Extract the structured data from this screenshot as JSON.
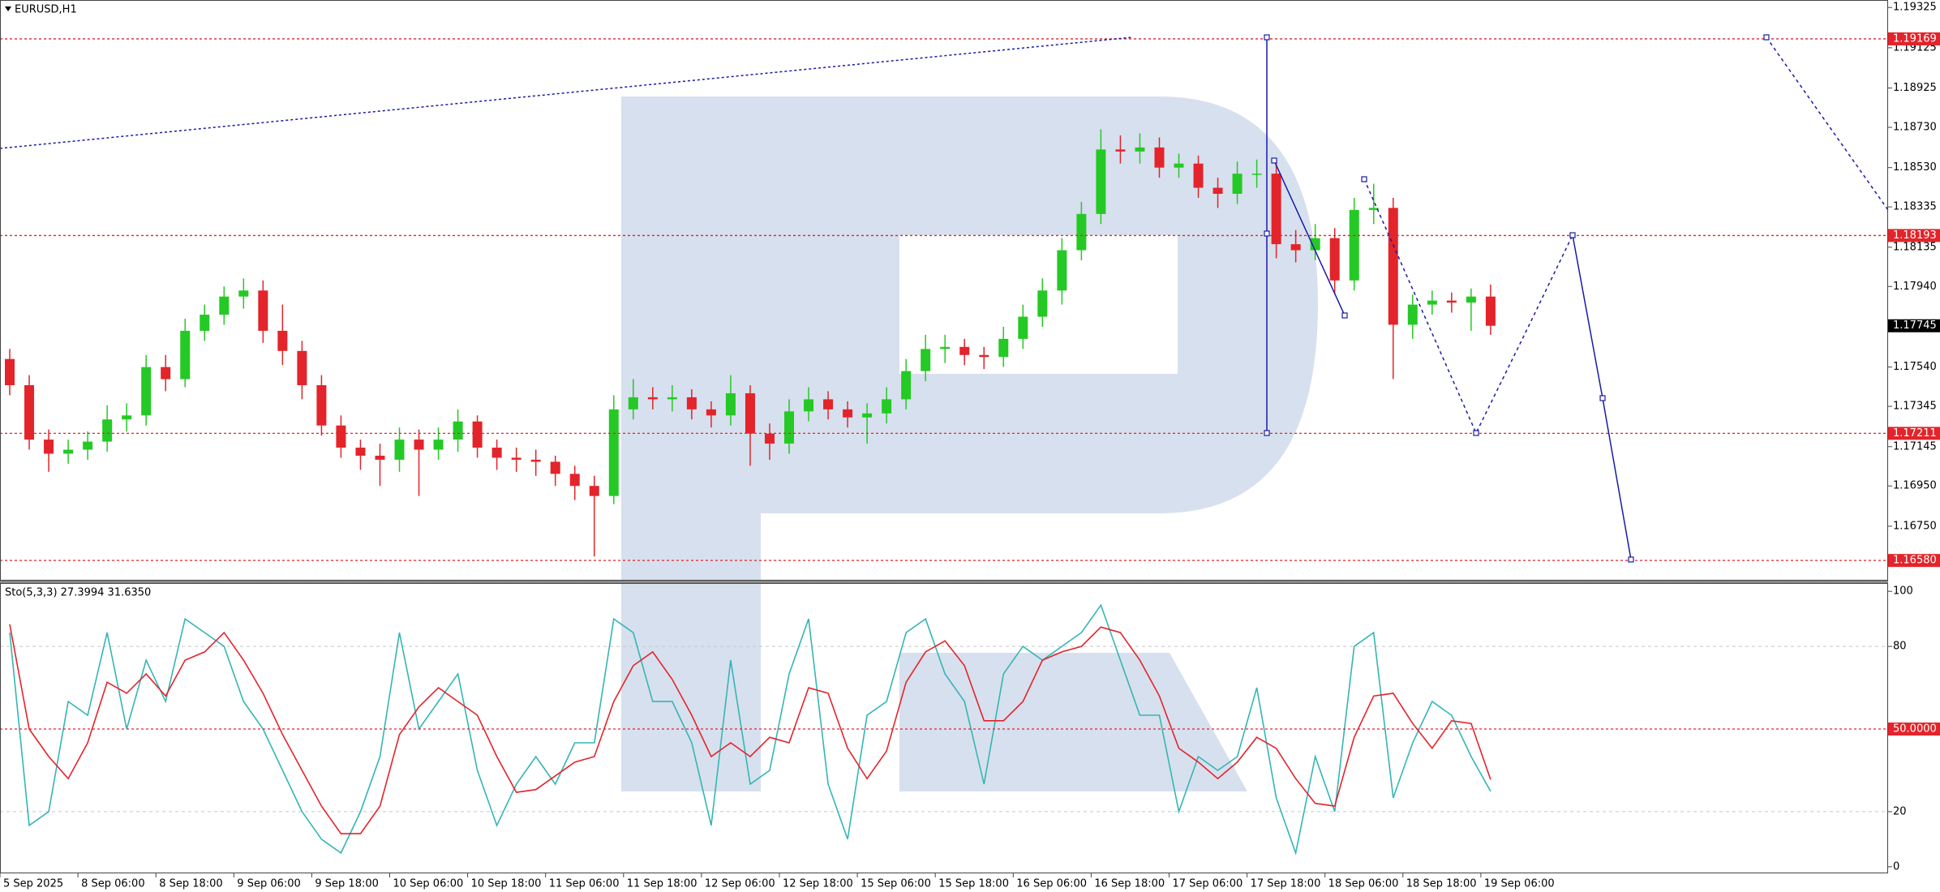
{
  "chart_data": [
    {
      "type": "candlestick",
      "title": "EURUSD,H1",
      "open": [
        1.1758,
        1.1745,
        1.1718,
        1.1711,
        1.1713,
        1.1717,
        1.1728,
        1.173,
        1.1754,
        1.1748,
        1.1772,
        1.178,
        1.1789,
        1.1792,
        1.1772,
        1.1762,
        1.1745,
        1.1725,
        1.1714,
        1.171,
        1.1708,
        1.1718,
        1.1713,
        1.1718,
        1.1727,
        1.1714,
        1.1709,
        1.1708,
        1.1707,
        1.1701,
        1.1695,
        1.169,
        1.1733,
        1.1739,
        1.1738,
        1.1739,
        1.1733,
        1.173,
        1.1741,
        1.1721,
        1.1716,
        1.1732,
        1.1738,
        1.1733,
        1.1729,
        1.1731,
        1.1738,
        1.1752,
        1.1763,
        1.1764,
        1.176,
        1.1759,
        1.1768,
        1.1779,
        1.1792,
        1.1812,
        1.183,
        1.1862,
        1.1861,
        1.1863,
        1.1853,
        1.1855,
        1.1843,
        1.184,
        1.185,
        1.185,
        1.1815,
        1.1812,
        1.1818,
        1.1797,
        1.1832,
        1.1833,
        1.1775,
        1.1785,
        1.1787,
        1.1786,
        1.1789
      ],
      "high": [
        1.1763,
        1.175,
        1.1723,
        1.1718,
        1.1722,
        1.1735,
        1.1736,
        1.176,
        1.176,
        1.1778,
        1.1785,
        1.1794,
        1.1798,
        1.1797,
        1.1785,
        1.1767,
        1.175,
        1.173,
        1.1718,
        1.1716,
        1.1724,
        1.1723,
        1.1724,
        1.1733,
        1.173,
        1.1718,
        1.1714,
        1.1713,
        1.171,
        1.1705,
        1.17,
        1.174,
        1.1748,
        1.1744,
        1.1745,
        1.1743,
        1.1737,
        1.175,
        1.1745,
        1.1726,
        1.1738,
        1.1744,
        1.1742,
        1.1737,
        1.1736,
        1.1744,
        1.1758,
        1.177,
        1.177,
        1.1768,
        1.1764,
        1.1774,
        1.1785,
        1.1798,
        1.1818,
        1.1836,
        1.1872,
        1.1869,
        1.187,
        1.1868,
        1.186,
        1.1859,
        1.1848,
        1.1856,
        1.1857,
        1.1855,
        1.1822,
        1.1825,
        1.1823,
        1.1838,
        1.1845,
        1.1838,
        1.179,
        1.1792,
        1.1791,
        1.1793,
        1.1795
      ],
      "low": [
        1.174,
        1.1713,
        1.1702,
        1.1706,
        1.1708,
        1.1712,
        1.1722,
        1.1725,
        1.1742,
        1.1744,
        1.1767,
        1.1775,
        1.1783,
        1.1766,
        1.1755,
        1.1738,
        1.172,
        1.1709,
        1.1703,
        1.1695,
        1.1702,
        1.169,
        1.1708,
        1.1712,
        1.1709,
        1.1703,
        1.1702,
        1.17,
        1.1695,
        1.1688,
        1.166,
        1.1686,
        1.1728,
        1.1733,
        1.1732,
        1.1728,
        1.1724,
        1.1725,
        1.1705,
        1.1708,
        1.1711,
        1.1727,
        1.1728,
        1.1724,
        1.1716,
        1.1726,
        1.1733,
        1.1747,
        1.1756,
        1.1755,
        1.1753,
        1.1754,
        1.1763,
        1.1774,
        1.1785,
        1.1807,
        1.1825,
        1.1855,
        1.1855,
        1.1848,
        1.1848,
        1.1838,
        1.1833,
        1.1835,
        1.1843,
        1.1808,
        1.1806,
        1.1807,
        1.179,
        1.1792,
        1.1825,
        1.1748,
        1.1768,
        1.178,
        1.1781,
        1.1772,
        1.177
      ],
      "close": [
        1.1745,
        1.1718,
        1.1711,
        1.1713,
        1.1717,
        1.1728,
        1.173,
        1.1754,
        1.1748,
        1.1772,
        1.178,
        1.1789,
        1.1792,
        1.1772,
        1.1762,
        1.1745,
        1.1725,
        1.1714,
        1.171,
        1.1708,
        1.1718,
        1.1713,
        1.1718,
        1.1727,
        1.1714,
        1.1709,
        1.1708,
        1.1707,
        1.1701,
        1.1695,
        1.169,
        1.1733,
        1.1739,
        1.1738,
        1.1739,
        1.1733,
        1.173,
        1.1741,
        1.1721,
        1.1716,
        1.1732,
        1.1738,
        1.1733,
        1.1729,
        1.1731,
        1.1738,
        1.1752,
        1.1763,
        1.1764,
        1.176,
        1.1759,
        1.1768,
        1.1779,
        1.1792,
        1.1812,
        1.183,
        1.1862,
        1.1861,
        1.1863,
        1.1853,
        1.1855,
        1.1843,
        1.184,
        1.185,
        1.185,
        1.1815,
        1.1812,
        1.1818,
        1.1797,
        1.1832,
        1.1833,
        1.1775,
        1.1785,
        1.1787,
        1.1786,
        1.1789,
        1.17745
      ],
      "up_color": "#25c925",
      "down_color": "#e3242b",
      "xlim": [
        0,
        96.9
      ],
      "ylim": [
        1.1648,
        1.19362
      ],
      "yticks": [
        1.19325,
        1.19125,
        1.18925,
        {
          "value": 1.1873,
          "label": "1.18730"
        },
        {
          "value": 1.1853,
          "label": "1.18530"
        },
        1.18335,
        1.18135,
        {
          "value": 1.1794,
          "label": "1.17940"
        },
        {
          "value": 1.1754,
          "label": "1.17540"
        },
        1.17345,
        1.17145,
        {
          "value": 1.1695,
          "label": "1.16950"
        },
        {
          "value": 1.1675,
          "label": "1.16750"
        }
      ],
      "levels": [
        1.19169,
        1.18193,
        1.17211,
        {
          "value": 1.1658,
          "label": "1.16580"
        }
      ],
      "level_color": "#e3242b",
      "current_price": 1.17745
    },
    {
      "type": "line",
      "title": "Sto(5,3,3) 27.3994 31.6350",
      "series": [
        {
          "color": "#35b5b5",
          "values": [
            85,
            15,
            20,
            60,
            55,
            85,
            50,
            75,
            60,
            90,
            85,
            80,
            60,
            50,
            35,
            20,
            10,
            5,
            20,
            40,
            85,
            50,
            60,
            70,
            35,
            15,
            30,
            40,
            30,
            45,
            45,
            90,
            85,
            60,
            60,
            45,
            15,
            75,
            30,
            35,
            70,
            90,
            30,
            10,
            55,
            60,
            85,
            90,
            70,
            60,
            30,
            70,
            80,
            75,
            80,
            85,
            95,
            75,
            55,
            55,
            20,
            40,
            35,
            40,
            65,
            25,
            5,
            40,
            20,
            80,
            85,
            25,
            45,
            60,
            55,
            40,
            27.3994
          ]
        },
        {
          "color": "#e3242b",
          "values": [
            88,
            50,
            40,
            32,
            45,
            67,
            63,
            70,
            62,
            75,
            78,
            85,
            75,
            63,
            48,
            35,
            22,
            12,
            12,
            22,
            48,
            58,
            65,
            60,
            55,
            40,
            27,
            28,
            33,
            38,
            40,
            60,
            73,
            78,
            68,
            55,
            40,
            45,
            40,
            47,
            45,
            65,
            63,
            43,
            32,
            42,
            67,
            78,
            82,
            73,
            53,
            53,
            60,
            75,
            78,
            80,
            87,
            85,
            75,
            62,
            43,
            38,
            32,
            38,
            47,
            43,
            32,
            23,
            22,
            47,
            62,
            63,
            52,
            43,
            53,
            52,
            31.635
          ]
        }
      ],
      "xlim": [
        0,
        96.9
      ],
      "xticks": [
        {
          "value": 0,
          "label": "5 Sep 2025"
        },
        {
          "value": 4,
          "label": "8 Sep 06:00"
        },
        {
          "value": 8,
          "label": "8 Sep 18:00"
        },
        {
          "value": 12,
          "label": "9 Sep 06:00"
        },
        {
          "value": 16,
          "label": "9 Sep 18:00"
        },
        {
          "value": 20,
          "label": "10 Sep 06:00"
        },
        {
          "value": 24,
          "label": "10 Sep 18:00"
        },
        {
          "value": 28,
          "label": "11 Sep 06:00"
        },
        {
          "value": 32,
          "label": "11 Sep 18:00"
        },
        {
          "value": 36,
          "label": "12 Sep 06:00"
        },
        {
          "value": 40,
          "label": "12 Sep 18:00"
        },
        {
          "value": 44,
          "label": "15 Sep 06:00"
        },
        {
          "value": 48,
          "label": "15 Sep 18:00"
        },
        {
          "value": 52,
          "label": "16 Sep 06:00"
        },
        {
          "value": 56,
          "label": "16 Sep 18:00"
        },
        {
          "value": 60,
          "label": "17 Sep 06:00"
        },
        {
          "value": 64,
          "label": "17 Sep 18:00"
        },
        {
          "value": 68,
          "label": "18 Sep 06:00"
        },
        {
          "value": 72,
          "label": "18 Sep 18:00"
        },
        {
          "value": 76,
          "label": "19 Sep 06:00"
        }
      ],
      "ylim": [
        -2.4,
        103
      ],
      "yticks": [
        0,
        20,
        80,
        100
      ],
      "grid": true,
      "levels": [
        {
          "value": 50,
          "label": "50.0000"
        }
      ],
      "level_color": "#e3242b"
    }
  ]
}
